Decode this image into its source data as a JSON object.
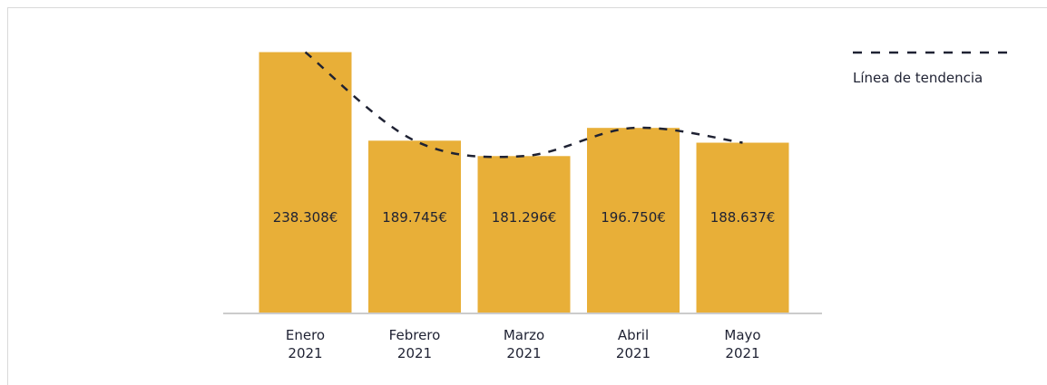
{
  "chart_data": {
    "type": "bar",
    "categories": [
      [
        "Enero",
        "2021"
      ],
      [
        "Febrero",
        "2021"
      ],
      [
        "Marzo",
        "2021"
      ],
      [
        "Abril",
        "2021"
      ],
      [
        "Mayo",
        "2021"
      ]
    ],
    "values": [
      238308,
      189745,
      181296,
      196750,
      188637
    ],
    "value_labels": [
      "238.308€",
      "189.745€",
      "181.296€",
      "196.750€",
      "188.637€"
    ],
    "trend": {
      "name": "Línea de tendencia",
      "values": [
        238308,
        189745,
        181296,
        196750,
        188637
      ],
      "style": "dashed"
    },
    "title": "",
    "xlabel": "",
    "ylabel": "",
    "ylim": [
      95000,
      250000
    ],
    "grid": false,
    "legend": "top-right",
    "colors": {
      "bar": "#E8AF38",
      "trend": "#1f2233",
      "baseline": "#cccccc",
      "text": "#1f2233"
    }
  }
}
